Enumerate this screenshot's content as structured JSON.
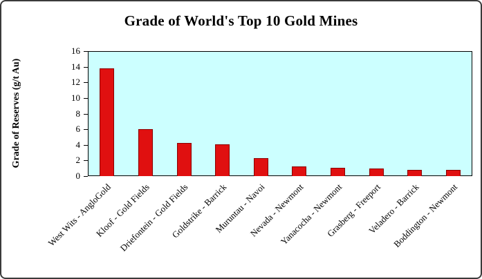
{
  "chart_data": {
    "type": "bar",
    "title": "Grade of World's Top 10 Gold Mines",
    "xlabel": "",
    "ylabel": "Grade of Reserves (g/t Au)",
    "categories": [
      "West Wits - AngloGold",
      "Kloof - Gold Fields",
      "Driefontein - Gold Fields",
      "Goldstrike - Barrick",
      "Muruntau - Navoi",
      "Nevada - Newmont",
      "Yanacocha - Newmont",
      "Grasberg - Freeport",
      "Veladero - Barrick",
      "Boddington - Newmont"
    ],
    "values": [
      13.8,
      6.0,
      4.2,
      4.1,
      2.3,
      1.2,
      1.1,
      1.0,
      0.8,
      0.8
    ],
    "ylim": [
      0,
      16
    ],
    "ytick_step": 2,
    "grid": false,
    "legend_position": "none",
    "colors": {
      "bar_fill": "#e01010",
      "bar_border": "#8b0000",
      "plot_background": "#ccffff",
      "plot_border": "#000000",
      "text": "#000000"
    }
  }
}
